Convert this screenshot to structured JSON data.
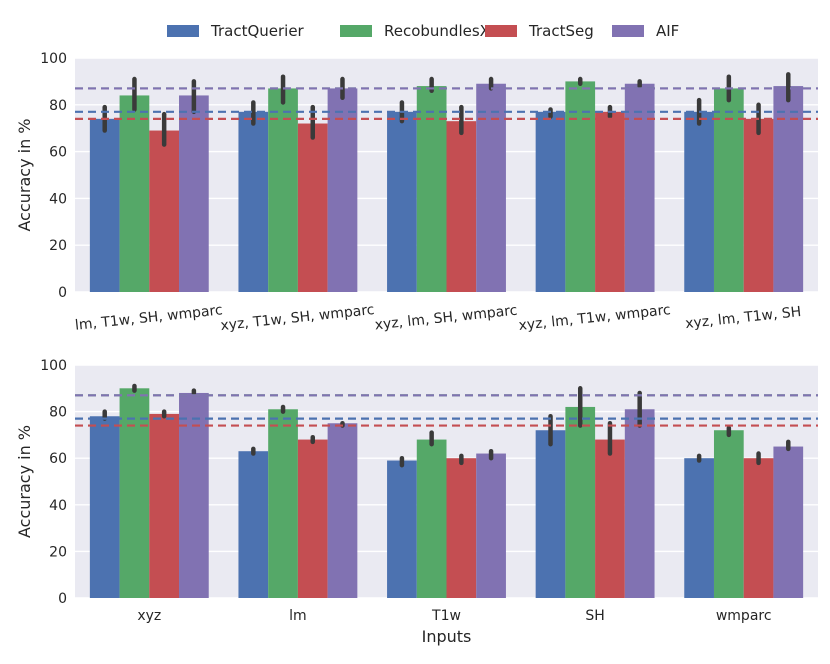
{
  "legend": [
    {
      "label": "TractQuerier",
      "color": "#4C72B0"
    },
    {
      "label": "RecobundlesX",
      "color": "#55A868"
    },
    {
      "label": "TractSeg",
      "color": "#C44E52"
    },
    {
      "label": "AIF",
      "color": "#8172B2"
    }
  ],
  "error_bar_color": "#3a3a3a",
  "chart_data": [
    {
      "type": "bar",
      "title": "",
      "xlabel": "",
      "ylabel": "Accuracy in %",
      "ylim": [
        0,
        100
      ],
      "yticks": [
        0,
        20,
        40,
        60,
        80,
        100
      ],
      "grid": true,
      "categories": [
        "lm, T1w, SH, wmparc",
        "xyz, T1w, SH, wmparc",
        "xyz, lm, SH, wmparc",
        "xyz, lm, T1w, wmparc",
        "xyz, lm, T1w, SH"
      ],
      "series": [
        {
          "name": "TractQuerier",
          "values": [
            74,
            77,
            77,
            77,
            77
          ],
          "err_low": [
            69,
            72,
            73,
            75,
            72
          ],
          "err_high": [
            79,
            81,
            81,
            78,
            82
          ]
        },
        {
          "name": "RecobundlesX",
          "values": [
            84,
            87,
            88,
            90,
            87
          ],
          "err_low": [
            78,
            81,
            86,
            89,
            82
          ],
          "err_high": [
            91,
            92,
            91,
            91,
            92
          ]
        },
        {
          "name": "TractSeg",
          "values": [
            69,
            72,
            73,
            77,
            74
          ],
          "err_low": [
            63,
            66,
            68,
            75,
            68
          ],
          "err_high": [
            76,
            79,
            79,
            79,
            80
          ]
        },
        {
          "name": "AIF",
          "values": [
            84,
            87,
            89,
            89,
            88
          ],
          "err_low": [
            77,
            83,
            87,
            88,
            82
          ],
          "err_high": [
            90,
            91,
            91,
            90,
            93
          ]
        }
      ],
      "reference_lines": [
        {
          "series": "TractQuerier",
          "value": 77
        },
        {
          "series": "RecobundlesX",
          "value": 87
        },
        {
          "series": "TractSeg",
          "value": 74
        },
        {
          "series": "AIF",
          "value": 87
        }
      ]
    },
    {
      "type": "bar",
      "title": "",
      "xlabel": "Inputs",
      "ylabel": "Accuracy in %",
      "ylim": [
        0,
        100
      ],
      "yticks": [
        0,
        20,
        40,
        60,
        80,
        100
      ],
      "grid": true,
      "categories": [
        "xyz",
        "lm",
        "T1w",
        "SH",
        "wmparc"
      ],
      "series": [
        {
          "name": "TractQuerier",
          "values": [
            78,
            63,
            59,
            72,
            60
          ],
          "err_low": [
            77,
            62,
            57,
            66,
            59
          ],
          "err_high": [
            80,
            64,
            60,
            78,
            61
          ]
        },
        {
          "name": "RecobundlesX",
          "values": [
            90,
            81,
            68,
            82,
            72
          ],
          "err_low": [
            89,
            80,
            66,
            74,
            70
          ],
          "err_high": [
            91,
            82,
            71,
            90,
            73
          ]
        },
        {
          "name": "TractSeg",
          "values": [
            79,
            68,
            60,
            68,
            60
          ],
          "err_low": [
            78,
            67,
            58,
            62,
            58
          ],
          "err_high": [
            80,
            69,
            61,
            75,
            62
          ]
        },
        {
          "name": "AIF",
          "values": [
            88,
            75,
            62,
            81,
            65
          ],
          "err_low": [
            88,
            74,
            60,
            74,
            64
          ],
          "err_high": [
            89,
            75,
            63,
            88,
            67
          ]
        }
      ],
      "reference_lines": [
        {
          "series": "TractQuerier",
          "value": 77
        },
        {
          "series": "RecobundlesX",
          "value": 87
        },
        {
          "series": "TractSeg",
          "value": 74
        },
        {
          "series": "AIF",
          "value": 87
        }
      ]
    }
  ]
}
